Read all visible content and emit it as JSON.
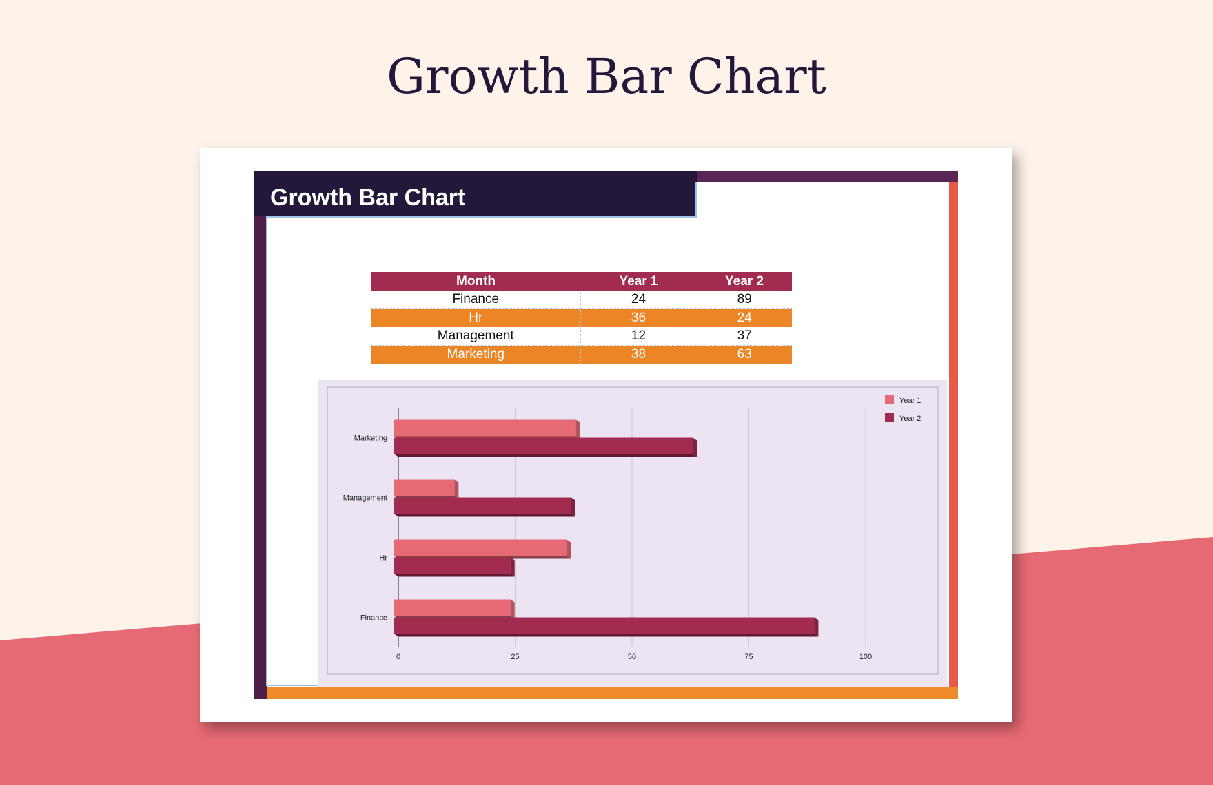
{
  "page": {
    "title": "Growth Bar Chart"
  },
  "sheet": {
    "title": "Growth Bar Chart"
  },
  "table": {
    "headers": [
      "Month",
      "Year 1",
      "Year 2"
    ],
    "rows": [
      [
        "Finance",
        "24",
        "89"
      ],
      [
        "Hr",
        "36",
        "24"
      ],
      [
        "Management",
        "12",
        "37"
      ],
      [
        "Marketing",
        "38",
        "63"
      ]
    ]
  },
  "colors": {
    "year1": "#e56a76",
    "year2": "#a22c50",
    "header": "#23173a",
    "accent_orange": "#ec8526",
    "plot_bg": "#ece4f3"
  },
  "chart_data": {
    "type": "bar",
    "orientation": "horizontal",
    "categories": [
      "Finance",
      "Hr",
      "Management",
      "Marketing"
    ],
    "series": [
      {
        "name": "Year 1",
        "values": [
          24,
          36,
          12,
          38
        ]
      },
      {
        "name": "Year 2",
        "values": [
          89,
          24,
          37,
          63
        ]
      }
    ],
    "xlim": [
      0,
      100
    ],
    "xticks": [
      "0",
      "25",
      "50",
      "75",
      "100"
    ],
    "grid": true,
    "legend": "top-right"
  }
}
